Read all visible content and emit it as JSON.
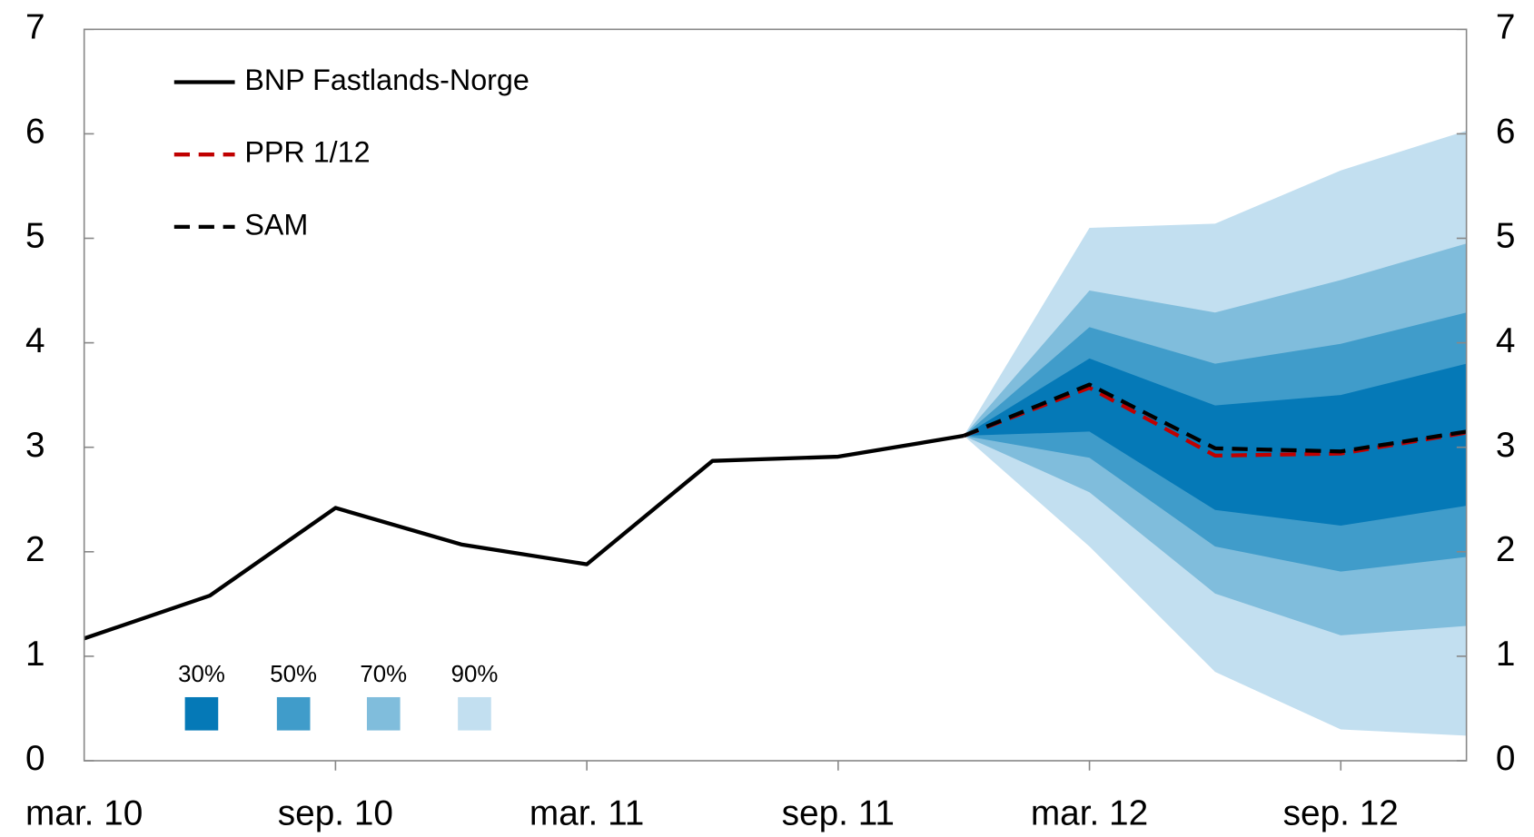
{
  "chart_data": {
    "type": "line",
    "categories": [
      "mar. 10",
      null,
      "sep. 10",
      null,
      "mar. 11",
      null,
      "sep. 11",
      null,
      "mar. 12",
      null,
      "sep. 12",
      null
    ],
    "ylim": [
      0,
      7
    ],
    "yticks": [
      0,
      1,
      2,
      3,
      4,
      5,
      6,
      7
    ],
    "y2lim": [
      0,
      7
    ],
    "y2ticks": [
      0,
      1,
      2,
      3,
      4,
      5,
      6,
      7
    ],
    "series": [
      {
        "name": "BNP Fastlands-Norge",
        "color": "#000000",
        "dash": false,
        "values": [
          1.17,
          1.58,
          2.42,
          2.07,
          1.88,
          2.87,
          2.91,
          3.11,
          null,
          null,
          null,
          null
        ]
      },
      {
        "name": "PPR 1/12",
        "color": "#c00000",
        "dash": true,
        "values": [
          null,
          null,
          null,
          null,
          null,
          null,
          null,
          3.11,
          3.57,
          2.92,
          2.94,
          3.14
        ]
      },
      {
        "name": "SAM",
        "color": "#000000",
        "dash": true,
        "values": [
          null,
          null,
          null,
          null,
          null,
          null,
          null,
          3.11,
          3.6,
          2.99,
          2.96,
          3.15
        ]
      }
    ],
    "bands": [
      {
        "name": "90%",
        "color": "#c2dff0",
        "lower": [
          null,
          null,
          null,
          null,
          null,
          null,
          null,
          3.11,
          2.05,
          0.85,
          0.3,
          0.24
        ],
        "upper": [
          null,
          null,
          null,
          null,
          null,
          null,
          null,
          3.11,
          5.1,
          5.14,
          5.65,
          6.03
        ]
      },
      {
        "name": "70%",
        "color": "#80bddc",
        "lower": [
          null,
          null,
          null,
          null,
          null,
          null,
          null,
          3.11,
          2.57,
          1.6,
          1.2,
          1.29
        ],
        "upper": [
          null,
          null,
          null,
          null,
          null,
          null,
          null,
          3.11,
          4.5,
          4.29,
          4.6,
          4.95
        ]
      },
      {
        "name": "50%",
        "color": "#409cca",
        "lower": [
          null,
          null,
          null,
          null,
          null,
          null,
          null,
          3.11,
          2.9,
          2.05,
          1.81,
          1.95
        ],
        "upper": [
          null,
          null,
          null,
          null,
          null,
          null,
          null,
          3.11,
          4.15,
          3.8,
          3.99,
          4.29
        ]
      },
      {
        "name": "30%",
        "color": "#0579b7",
        "lower": [
          null,
          null,
          null,
          null,
          null,
          null,
          null,
          3.11,
          3.15,
          2.4,
          2.25,
          2.44
        ],
        "upper": [
          null,
          null,
          null,
          null,
          null,
          null,
          null,
          3.11,
          3.85,
          3.4,
          3.5,
          3.8
        ]
      }
    ]
  }
}
